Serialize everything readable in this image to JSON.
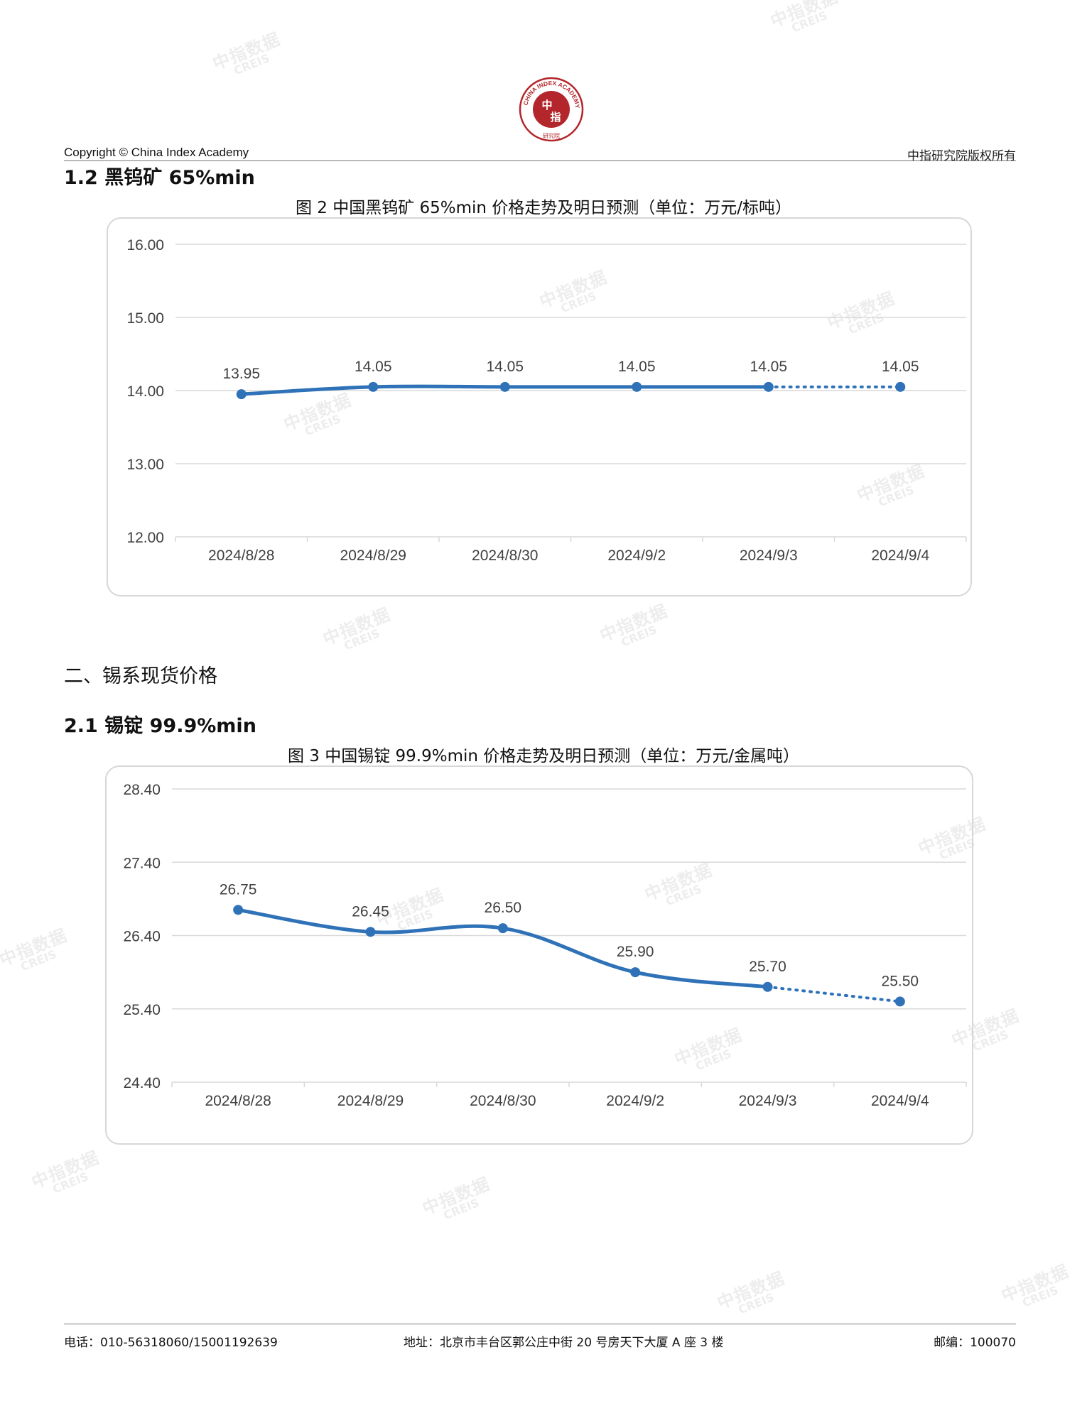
{
  "header": {
    "copyright": "Copyright © China Index Academy",
    "rights": "中指研究院版权所有",
    "logo": {
      "ring_text": "CHINA INDEX ACADEMY",
      "center_text_1": "中",
      "center_text_2": "指",
      "bottom_text": "研究院",
      "color": "#b3262b"
    }
  },
  "watermark": {
    "cn": "中指数据",
    "en": "CREIS"
  },
  "sections": {
    "s1_2_title": "1.2 黑钨矿 65%min",
    "s2_title": "二、锡系现货价格",
    "s2_1_title": "2.1 锡锭 99.9%min"
  },
  "chart_data": [
    {
      "type": "line",
      "title": "图 2 中国黑钨矿 65%min 价格走势及明日预测（单位：万元/标吨）",
      "categories": [
        "2024/8/28",
        "2024/8/29",
        "2024/8/30",
        "2024/9/2",
        "2024/9/3",
        "2024/9/4"
      ],
      "values": [
        13.95,
        14.05,
        14.05,
        14.05,
        14.05,
        14.05
      ],
      "value_labels": [
        "13.95",
        "14.05",
        "14.05",
        "14.05",
        "14.05",
        "14.05"
      ],
      "forecast_from_index": 4,
      "ylim": [
        12.0,
        16.0
      ],
      "yticks": [
        "16.00",
        "15.00",
        "14.00",
        "13.00",
        "12.00"
      ],
      "grid": true,
      "color": "#2f72b8"
    },
    {
      "type": "line",
      "title": "图 3 中国锡锭 99.9%min 价格走势及明日预测（单位：万元/金属吨）",
      "categories": [
        "2024/8/28",
        "2024/8/29",
        "2024/8/30",
        "2024/9/2",
        "2024/9/3",
        "2024/9/4"
      ],
      "values": [
        26.75,
        26.45,
        26.5,
        25.9,
        25.7,
        25.5
      ],
      "value_labels": [
        "26.75",
        "26.45",
        "26.50",
        "25.90",
        "25.70",
        "25.50"
      ],
      "forecast_from_index": 4,
      "ylim": [
        24.4,
        28.4
      ],
      "yticks": [
        "28.40",
        "27.40",
        "26.40",
        "25.40",
        "24.40"
      ],
      "grid": true,
      "color": "#2f72b8"
    }
  ],
  "footer": {
    "phone": "电话：010-56318060/15001192639",
    "address": "地址：北京市丰台区郭公庄中街 20 号房天下大厦 A 座 3 楼",
    "postcode": "邮编：100070"
  }
}
